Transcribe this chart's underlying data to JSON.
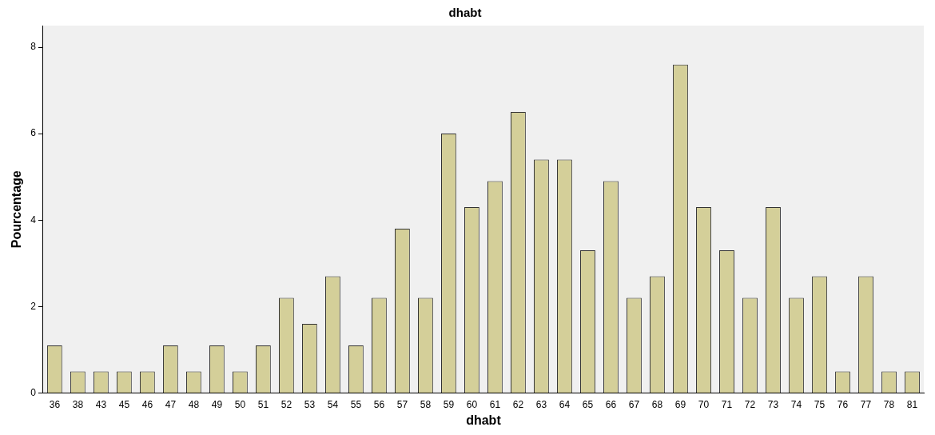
{
  "chart_data": {
    "type": "bar",
    "title": "dhabt",
    "xlabel": "dhabt",
    "ylabel": "Pourcentage",
    "categories": [
      "36",
      "38",
      "43",
      "45",
      "46",
      "47",
      "48",
      "49",
      "50",
      "51",
      "52",
      "53",
      "54",
      "55",
      "56",
      "57",
      "58",
      "59",
      "60",
      "61",
      "62",
      "63",
      "64",
      "65",
      "66",
      "67",
      "68",
      "69",
      "70",
      "71",
      "72",
      "73",
      "74",
      "75",
      "76",
      "77",
      "78",
      "81"
    ],
    "values": [
      1.1,
      0.5,
      0.5,
      0.5,
      0.5,
      1.1,
      0.5,
      1.1,
      0.5,
      1.1,
      2.2,
      1.6,
      2.7,
      1.1,
      2.2,
      3.8,
      2.2,
      6.0,
      4.3,
      4.9,
      6.5,
      5.4,
      5.4,
      3.3,
      4.9,
      2.2,
      2.7,
      7.6,
      4.3,
      3.3,
      2.2,
      4.3,
      2.2,
      2.7,
      0.5,
      2.7,
      0.5,
      0.5
    ],
    "color": "#d4cf99",
    "ylim": [
      0,
      8.5
    ],
    "yticks": [
      0,
      2,
      4,
      6,
      8
    ],
    "grid": false,
    "legend": false
  }
}
